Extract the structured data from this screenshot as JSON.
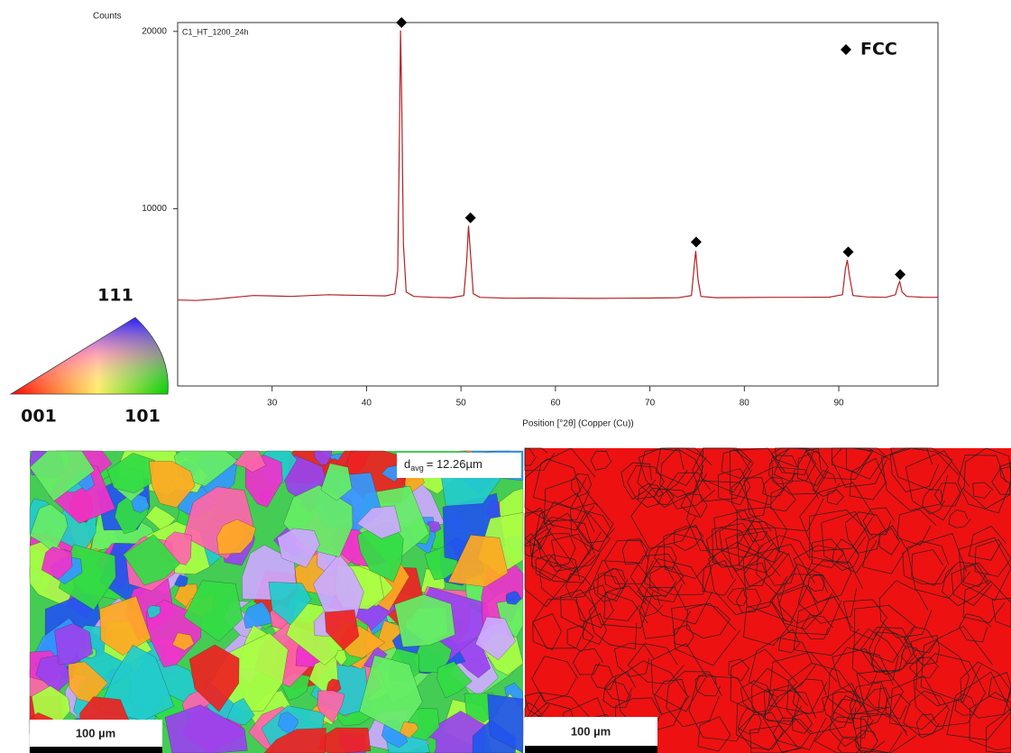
{
  "chart_data": {
    "type": "line",
    "y_axis_label": "Counts",
    "x_axis_label": "Position [°2θ] (Copper (Cu))",
    "xlim": [
      20,
      100.5
    ],
    "ylim": [
      0,
      20500
    ],
    "xticks": [
      30,
      40,
      50,
      60,
      70,
      80,
      90
    ],
    "yticks": [
      10000,
      20000
    ],
    "legend": "top-right",
    "series": [
      {
        "name": "C1_HT_1200_24h",
        "color": "#b22222",
        "x": [
          20,
          22,
          24,
          26,
          28,
          30,
          32,
          34,
          36,
          38,
          40,
          42,
          43,
          43.3,
          43.5,
          43.6,
          43.7,
          43.9,
          44.2,
          45,
          47,
          49,
          50.3,
          50.6,
          50.8,
          51,
          51.3,
          52,
          55,
          58,
          61,
          64,
          67,
          70,
          73,
          74.4,
          74.7,
          74.85,
          75.1,
          75.4,
          77,
          80,
          83,
          86,
          89,
          90.4,
          90.7,
          90.9,
          91.1,
          91.5,
          93,
          95,
          96,
          96.3,
          96.45,
          96.7,
          97.2,
          99,
          100.5
        ],
        "values": [
          4850,
          4820,
          4900,
          5000,
          5100,
          5080,
          5050,
          5100,
          5150,
          5120,
          5100,
          5080,
          5200,
          6500,
          15000,
          20050,
          17000,
          8000,
          5300,
          5050,
          5000,
          4980,
          5100,
          7000,
          9036,
          7500,
          5200,
          5000,
          4950,
          4960,
          4950,
          4940,
          4950,
          4960,
          4980,
          5100,
          6800,
          7614,
          6000,
          5050,
          4980,
          4990,
          5000,
          5000,
          5010,
          5150,
          6600,
          7107,
          6300,
          5100,
          5020,
          5000,
          5150,
          5700,
          5888,
          5300,
          5050,
          5000,
          5000
        ]
      },
      {
        "name": "FCC",
        "color": "#000000",
        "marker": "diamond",
        "x": [
          43.7,
          51,
          74.9,
          91,
          96.5
        ],
        "values": [
          20500,
          9490,
          8120,
          7560,
          6290
        ]
      }
    ]
  },
  "ipf_legend": {
    "top": "111",
    "left": "001",
    "right": "101"
  },
  "ipf_map": {
    "scale_bar": "100 µm",
    "grain_size": {
      "symbol": "d",
      "subscript": "avg",
      "text": "= 12.26µm"
    }
  },
  "boundary_map": {
    "scale_bar": "100 µm"
  }
}
